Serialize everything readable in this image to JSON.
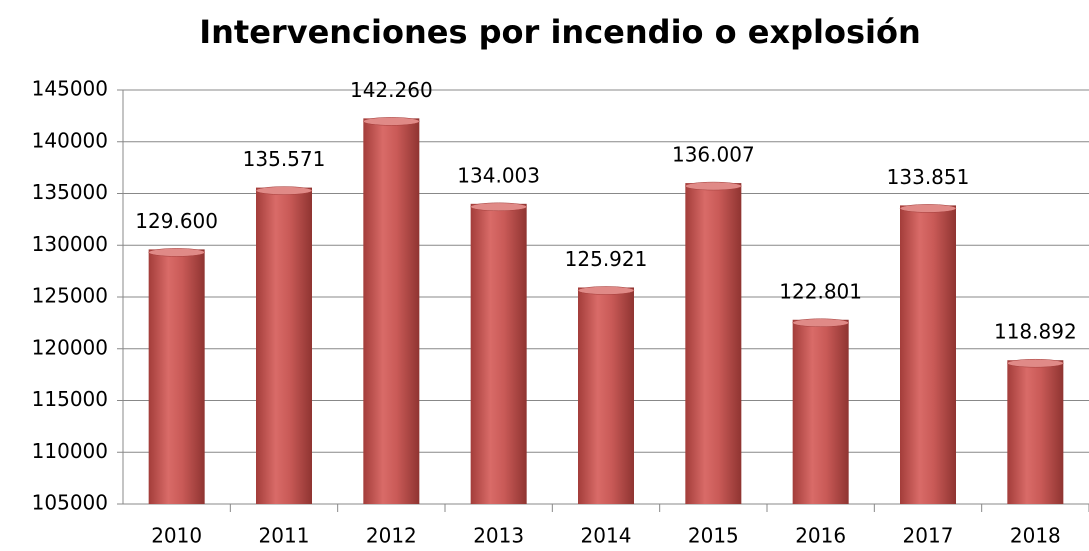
{
  "chart_data": {
    "type": "bar",
    "title": "Intervenciones por incendio o explosión",
    "categories": [
      "2010",
      "2011",
      "2012",
      "2013",
      "2014",
      "2015",
      "2016",
      "2017",
      "2018"
    ],
    "values": [
      129600,
      135571,
      142260,
      134003,
      125921,
      136007,
      122801,
      133851,
      118892
    ],
    "value_labels": [
      "129.600",
      "135.571",
      "142.260",
      "134.003",
      "125.921",
      "136.007",
      "122.801",
      "133.851",
      "118.892"
    ],
    "color": "#c0504d",
    "ylim": [
      105000,
      145000
    ],
    "yticks": [
      105000,
      110000,
      115000,
      120000,
      125000,
      130000,
      135000,
      140000,
      145000
    ],
    "grid": true
  }
}
